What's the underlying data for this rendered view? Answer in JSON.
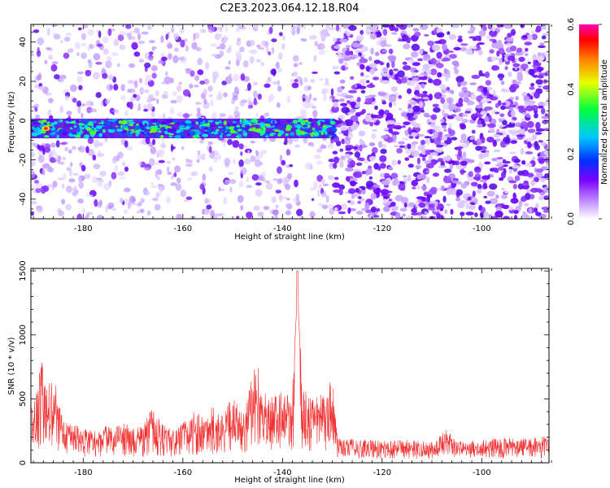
{
  "title": "C2E3.2023.064.12.18.R04",
  "chart_data": [
    {
      "type": "heatmap",
      "name": "spectrogram",
      "xlabel": "Height of straight line (km)",
      "ylabel": "Frequency (Hz)",
      "xlim": [
        -190.5,
        -86.5
      ],
      "ylim": [
        -50,
        49
      ],
      "x_ticks": [
        -180,
        -160,
        -140,
        -120,
        -100
      ],
      "y_ticks": [
        -40,
        -20,
        0,
        20,
        40
      ],
      "band": {
        "x_start": -190.5,
        "x_end": -129.5,
        "freq_center": -4,
        "freq_halfwidth": 5
      },
      "noise_boundary_km": -129.5,
      "peak": {
        "x": -187.5,
        "freq": -4
      },
      "colorbar": {
        "label": "Normalized spectral amplitude",
        "range": [
          0.0,
          0.6
        ],
        "ticks": [
          "0.0",
          "0.2",
          "0.4",
          "0.6"
        ]
      }
    },
    {
      "type": "line",
      "name": "snr",
      "xlabel": "Height of straight line (km)",
      "ylabel": "SNR (10 * v/v)",
      "xlim": [
        -190.5,
        -86.5
      ],
      "ylim": [
        0,
        1520
      ],
      "x_ticks": [
        -180,
        -160,
        -140,
        -120,
        -100
      ],
      "y_ticks": [
        0,
        500,
        1000,
        1500
      ],
      "color": "#f03030",
      "series": [
        {
          "name": "SNR",
          "x": [
            -190,
            -189,
            -188,
            -187,
            -186,
            -185,
            -184,
            -182,
            -180,
            -178,
            -176,
            -174,
            -172,
            -170,
            -168,
            -166,
            -164,
            -162,
            -160,
            -158,
            -156,
            -154,
            -152,
            -150,
            -148,
            -146,
            -145,
            -144,
            -142,
            -140,
            -138,
            -137,
            -136,
            -134,
            -132,
            -130,
            -129,
            -128,
            -125,
            -120,
            -115,
            -110,
            -107,
            -105,
            -100,
            -95,
            -90,
            -87
          ],
          "values": [
            500,
            700,
            820,
            600,
            760,
            500,
            360,
            300,
            280,
            250,
            300,
            270,
            320,
            280,
            300,
            440,
            300,
            260,
            320,
            420,
            360,
            450,
            380,
            540,
            380,
            720,
            860,
            560,
            520,
            560,
            580,
            1500,
            600,
            520,
            560,
            700,
            200,
            180,
            190,
            170,
            180,
            160,
            270,
            170,
            180,
            200,
            190,
            230
          ]
        }
      ]
    }
  ]
}
